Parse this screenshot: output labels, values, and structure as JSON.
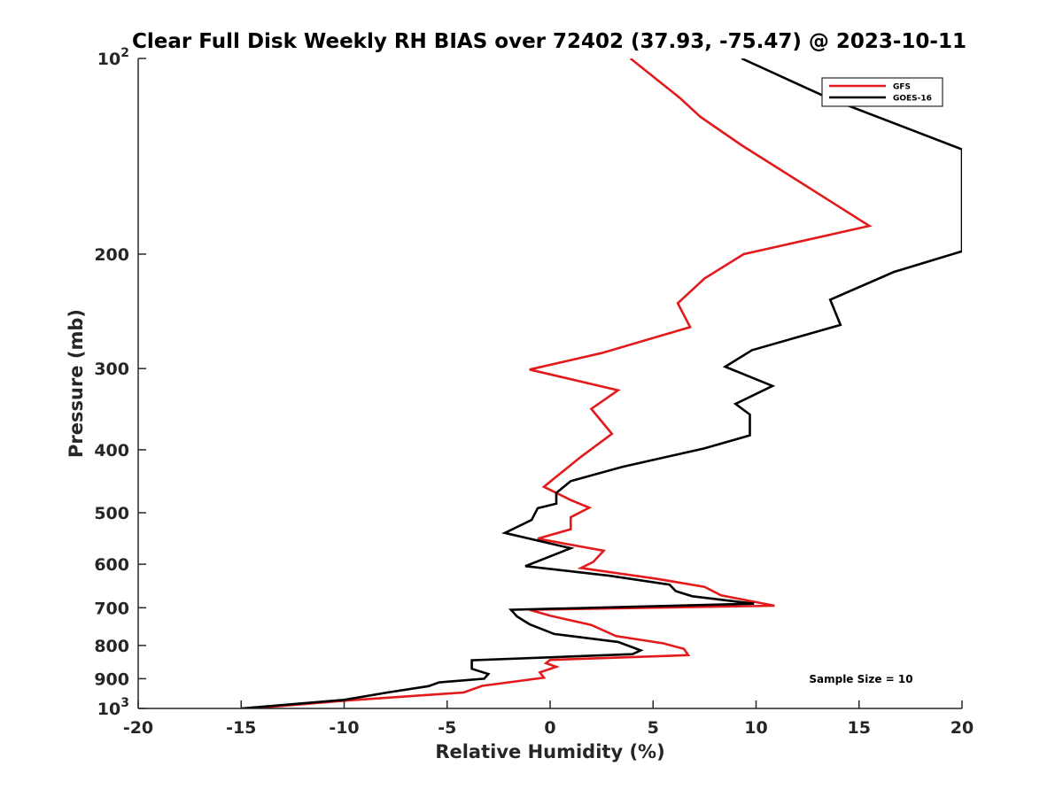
{
  "chart_data": {
    "type": "line",
    "title": "Clear Full Disk Weekly RH BIAS over 72402 (37.93, -75.47) @ 2023-10-11",
    "xlabel": "Relative Humidity (%)",
    "ylabel": "Pressure (mb)",
    "xlim": [
      -20,
      20
    ],
    "ylim": [
      100,
      1000
    ],
    "y_scale": "log",
    "y_reversed": true,
    "x_ticks": [
      "-20",
      "-15",
      "-10",
      "-5",
      "0",
      "5",
      "10",
      "15",
      "20"
    ],
    "y_ticks": [
      {
        "value": 100,
        "base": "10",
        "exp": "2"
      },
      {
        "value": 200,
        "label": "200"
      },
      {
        "value": 300,
        "label": "300"
      },
      {
        "value": 400,
        "label": "400"
      },
      {
        "value": 500,
        "label": "500"
      },
      {
        "value": 600,
        "label": "600"
      },
      {
        "value": 700,
        "label": "700"
      },
      {
        "value": 800,
        "label": "800"
      },
      {
        "value": 900,
        "label": "900"
      },
      {
        "value": 1000,
        "base": "10",
        "exp": "3"
      }
    ],
    "legend_position": "top-right",
    "annotation": "Sample Size = 10",
    "series": [
      {
        "name": "GFS",
        "color": "#e31a1c",
        "points": [
          [
            3.9,
            100
          ],
          [
            6.3,
            115
          ],
          [
            7.3,
            123
          ],
          [
            9.3,
            136
          ],
          [
            13.1,
            162
          ],
          [
            15.5,
            181
          ],
          [
            9.4,
            200
          ],
          [
            7.5,
            218
          ],
          [
            6.2,
            238
          ],
          [
            6.8,
            259
          ],
          [
            2.5,
            284
          ],
          [
            -1.0,
            301
          ],
          [
            3.3,
            324
          ],
          [
            2.0,
            346
          ],
          [
            3.0,
            378
          ],
          [
            1.5,
            410
          ],
          [
            0.3,
            440
          ],
          [
            -0.3,
            456
          ],
          [
            1.0,
            478
          ],
          [
            1.9,
            491
          ],
          [
            1.0,
            508
          ],
          [
            1.0,
            530
          ],
          [
            -0.6,
            548
          ],
          [
            2.6,
            572
          ],
          [
            2.1,
            595
          ],
          [
            1.5,
            608
          ],
          [
            5.2,
            632
          ],
          [
            7.5,
            650
          ],
          [
            8.3,
            670
          ],
          [
            10.9,
            695
          ],
          [
            -1.0,
            705
          ],
          [
            0.0,
            720
          ],
          [
            2.0,
            744
          ],
          [
            3.2,
            774
          ],
          [
            5.5,
            794
          ],
          [
            6.5,
            810
          ],
          [
            6.7,
            828
          ],
          [
            0.0,
            842
          ],
          [
            -0.2,
            852
          ],
          [
            0.3,
            863
          ],
          [
            -0.5,
            880
          ],
          [
            -0.3,
            897
          ],
          [
            -3.3,
            923
          ],
          [
            -4.2,
            945
          ],
          [
            -9.8,
            972
          ],
          [
            -14.5,
            1000
          ]
        ]
      },
      {
        "name": "GOES-16",
        "color": "#000000",
        "points": [
          [
            9.3,
            100
          ],
          [
            13.5,
            115
          ],
          [
            20.0,
            138
          ],
          [
            20.0,
            198
          ],
          [
            16.7,
            213
          ],
          [
            13.6,
            235
          ],
          [
            14.1,
            257
          ],
          [
            9.8,
            281
          ],
          [
            8.5,
            298
          ],
          [
            10.8,
            319
          ],
          [
            9.0,
            340
          ],
          [
            9.7,
            353
          ],
          [
            9.7,
            380
          ],
          [
            7.5,
            398
          ],
          [
            3.5,
            425
          ],
          [
            1.0,
            447
          ],
          [
            0.3,
            466
          ],
          [
            0.3,
            484
          ],
          [
            -0.6,
            492
          ],
          [
            -0.9,
            513
          ],
          [
            -2.2,
            537
          ],
          [
            1.0,
            567
          ],
          [
            -1.2,
            604
          ],
          [
            2.9,
            625
          ],
          [
            5.8,
            645
          ],
          [
            6.1,
            660
          ],
          [
            6.9,
            672
          ],
          [
            9.9,
            690
          ],
          [
            -1.9,
            705
          ],
          [
            -1.6,
            722
          ],
          [
            -1.0,
            742
          ],
          [
            0.2,
            768
          ],
          [
            3.3,
            790
          ],
          [
            4.4,
            814
          ],
          [
            4.0,
            825
          ],
          [
            -3.8,
            843
          ],
          [
            -3.8,
            869
          ],
          [
            -3.0,
            885
          ],
          [
            -3.2,
            900
          ],
          [
            -5.4,
            912
          ],
          [
            -5.9,
            924
          ],
          [
            -7.9,
            945
          ],
          [
            -10.0,
            970
          ],
          [
            -15.0,
            1000
          ]
        ]
      }
    ]
  }
}
